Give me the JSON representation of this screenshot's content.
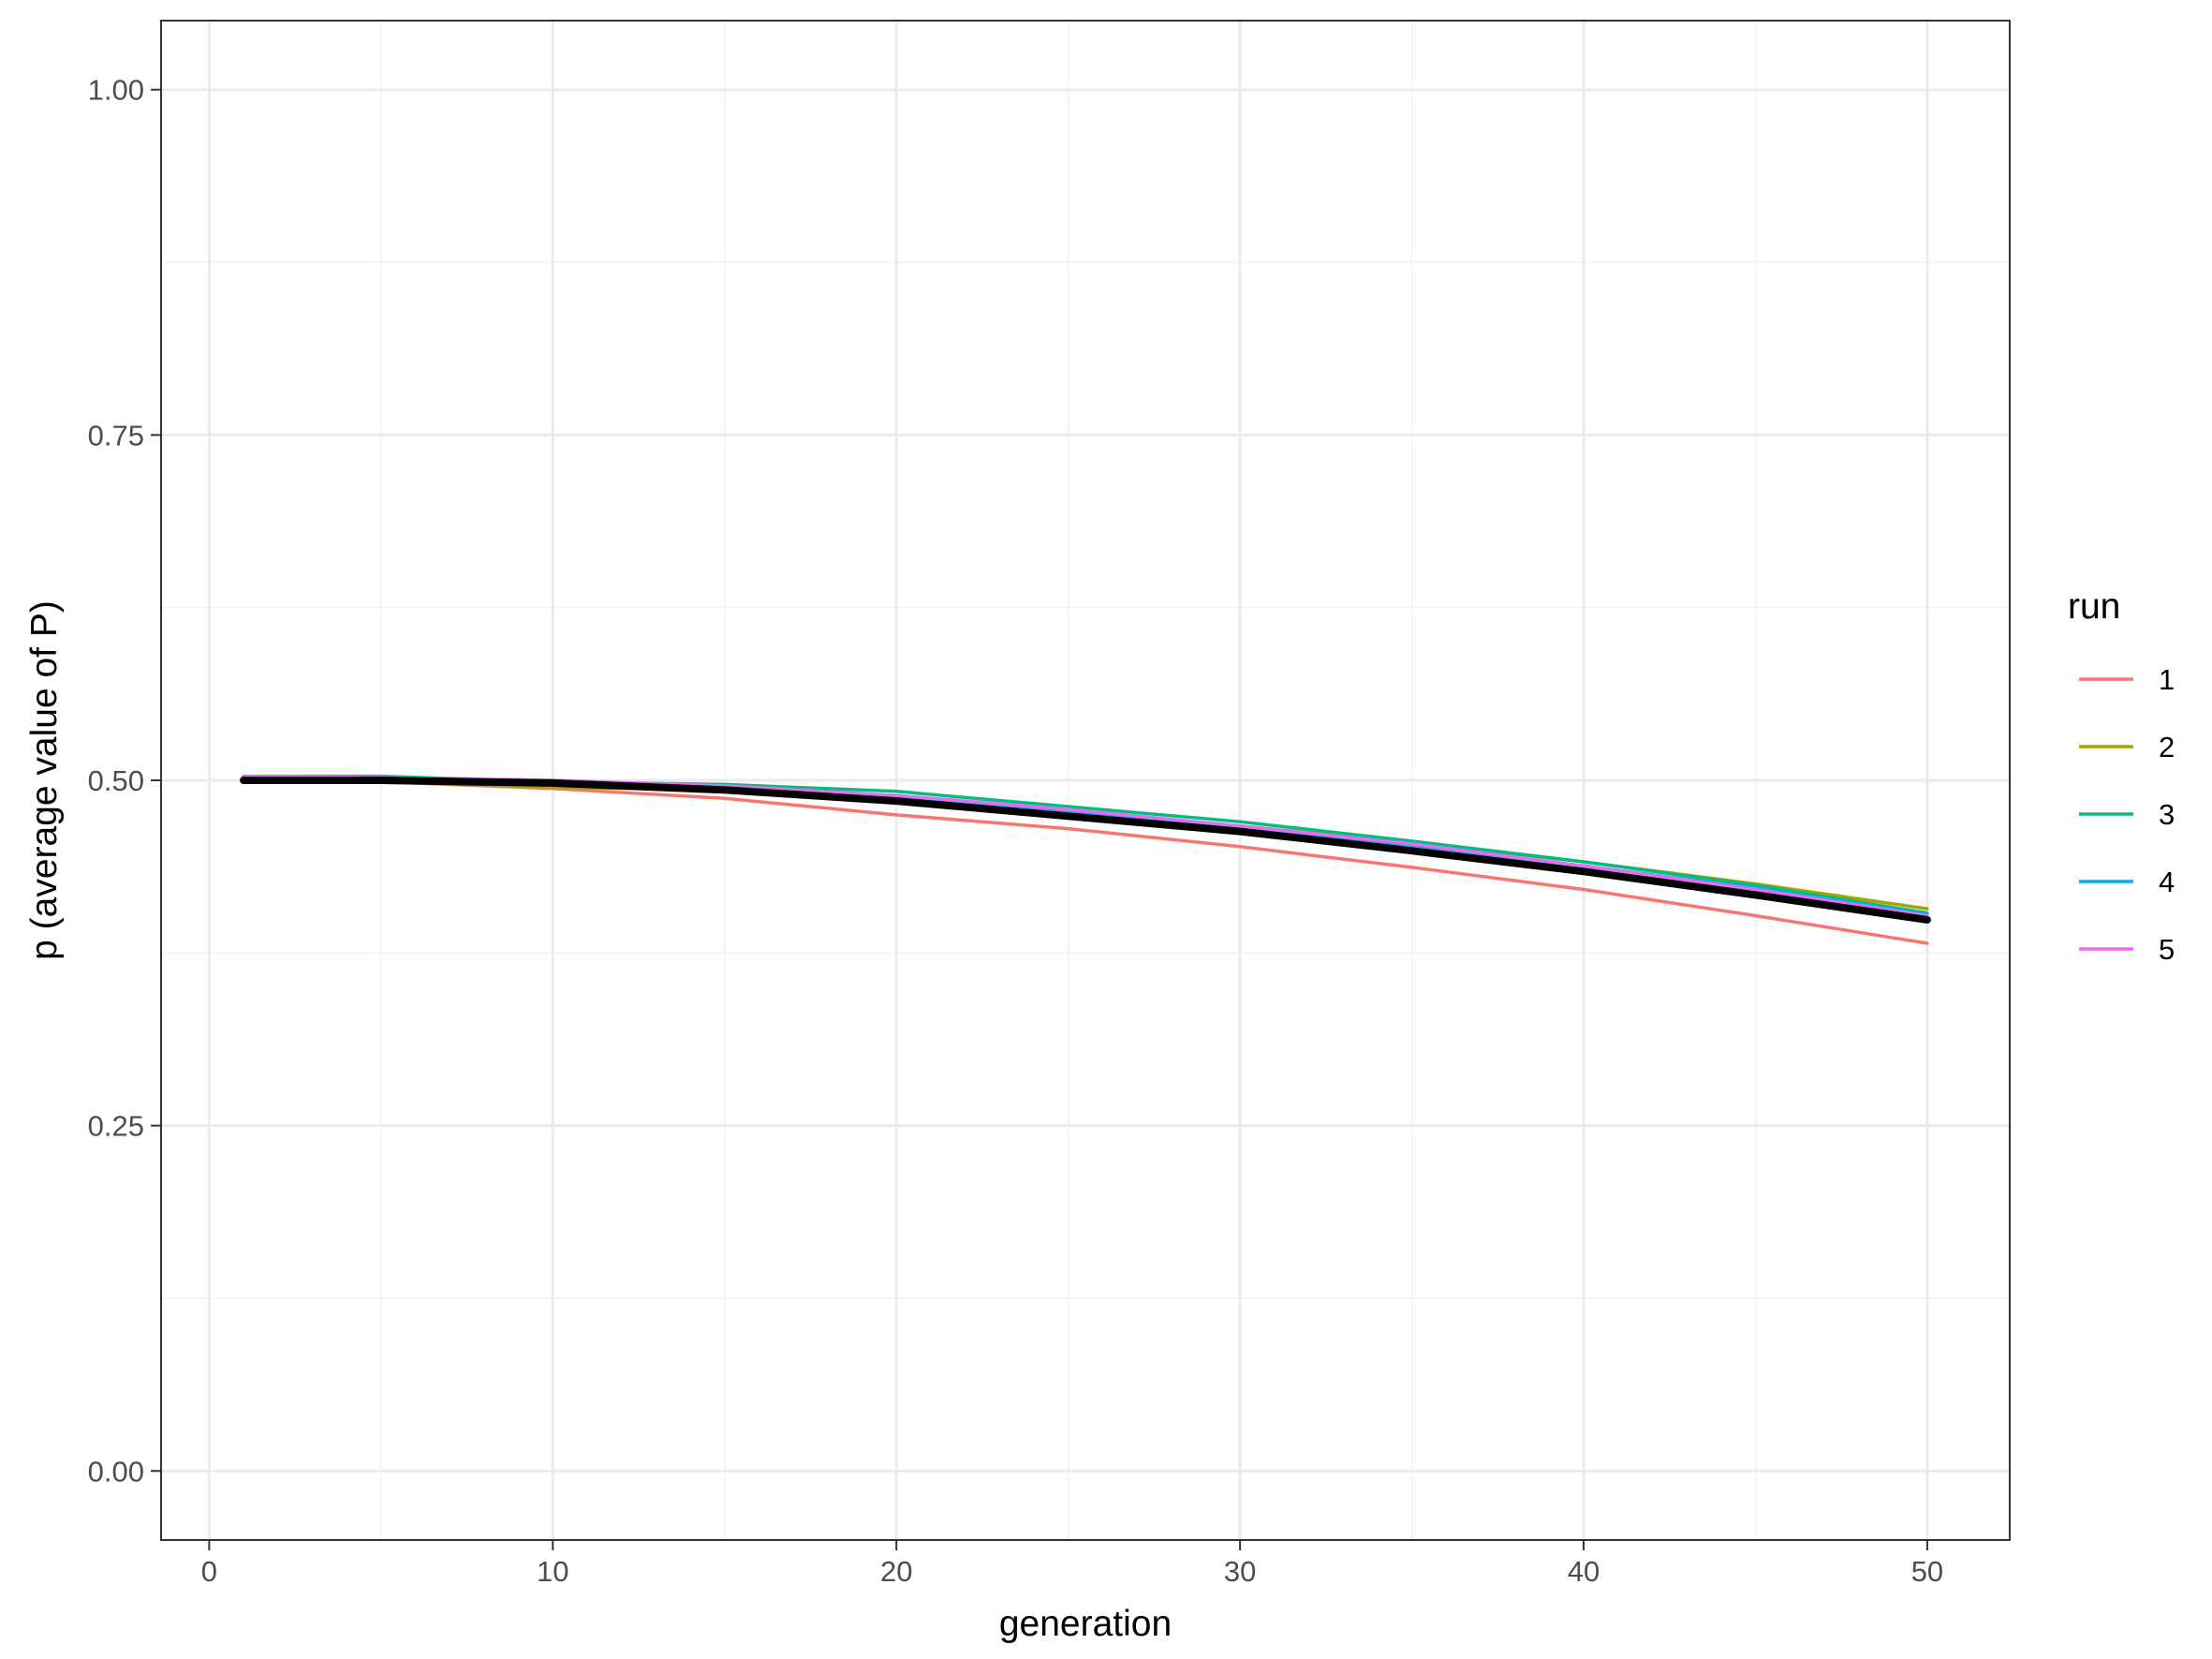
{
  "chart_data": {
    "type": "line",
    "xlabel": "generation",
    "ylabel": "p (average value of P)",
    "xlim": [
      -1.4,
      52.4
    ],
    "ylim": [
      -0.05,
      1.05
    ],
    "x_ticks": [
      0,
      10,
      20,
      30,
      40,
      50
    ],
    "x_tick_labels": [
      "0",
      "10",
      "20",
      "30",
      "40",
      "50"
    ],
    "y_ticks": [
      0,
      0.25,
      0.5,
      0.75,
      1.0
    ],
    "y_tick_labels": [
      "0.00",
      "0.25",
      "0.50",
      "0.75",
      "1.00"
    ],
    "grid": true,
    "legend": {
      "title": "run",
      "placement": "right"
    },
    "x": [
      1,
      5,
      10,
      15,
      20,
      25,
      30,
      35,
      40,
      45,
      50
    ],
    "series": [
      {
        "name": "1",
        "color": "#F8766D",
        "values": [
          0.5,
          0.499,
          0.494,
          0.487,
          0.475,
          0.465,
          0.452,
          0.437,
          0.421,
          0.402,
          0.382
        ]
      },
      {
        "name": "2",
        "color": "#A3A500",
        "values": [
          0.5,
          0.499,
          0.495,
          0.493,
          0.485,
          0.477,
          0.467,
          0.455,
          0.441,
          0.425,
          0.407
        ]
      },
      {
        "name": "3",
        "color": "#00BF7D",
        "values": [
          0.503,
          0.503,
          0.499,
          0.497,
          0.492,
          0.481,
          0.47,
          0.456,
          0.441,
          0.424,
          0.404
        ]
      },
      {
        "name": "4",
        "color": "#00B0F6",
        "values": [
          0.502,
          0.502,
          0.499,
          0.496,
          0.488,
          0.478,
          0.466,
          0.453,
          0.438,
          0.422,
          0.403
        ]
      },
      {
        "name": "5",
        "color": "#E76BF3",
        "values": [
          0.503,
          0.502,
          0.5,
          0.496,
          0.489,
          0.479,
          0.467,
          0.454,
          0.438,
          0.421,
          0.402
        ]
      },
      {
        "color": "#000000",
        "values": [
          0.5,
          0.5,
          0.498,
          0.493,
          0.485,
          0.474,
          0.463,
          0.449,
          0.434,
          0.417,
          0.399
        ]
      }
    ]
  }
}
